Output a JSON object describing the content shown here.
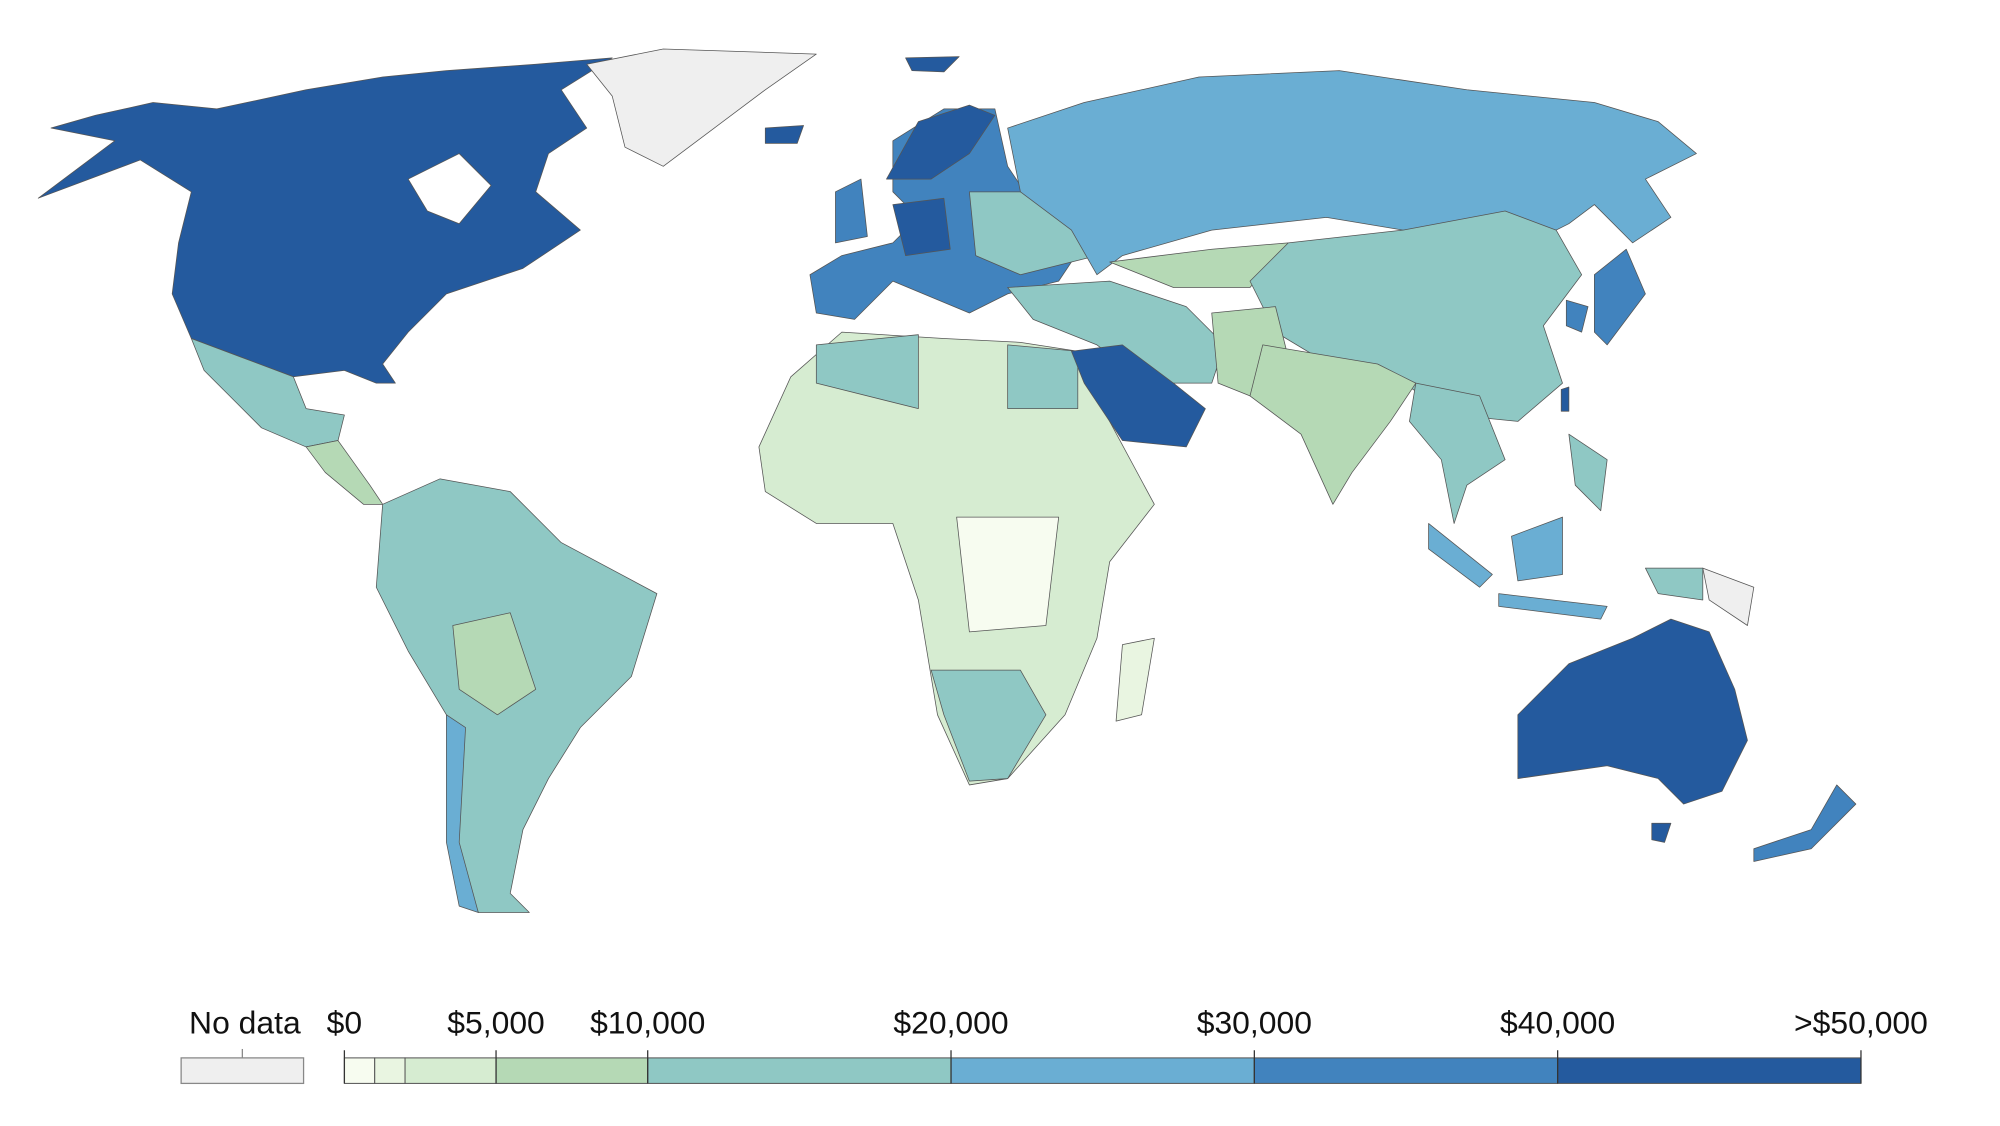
{
  "legend": {
    "no_data": {
      "label": "No data",
      "color": "#efefef"
    },
    "breaks": [
      0,
      1000,
      2000,
      5000,
      10000,
      20000,
      30000,
      40000,
      50000
    ],
    "colors": [
      "#f7fcf0",
      "#e9f5e1",
      "#d6ecd1",
      "#b5d9b5",
      "#8fc8c4",
      "#6aaed3",
      "#4183be",
      "#245a9e"
    ],
    "ticks": [
      {
        "value": 0,
        "label": "$0"
      },
      {
        "value": 5000,
        "label": "$5,000"
      },
      {
        "value": 10000,
        "label": "$10,000"
      },
      {
        "value": 20000,
        "label": "$20,000"
      },
      {
        "value": 30000,
        "label": "$30,000"
      },
      {
        "value": 40000,
        "label": "$40,000"
      },
      {
        "value": 50000,
        "label": ">$50,000"
      }
    ]
  }
}
